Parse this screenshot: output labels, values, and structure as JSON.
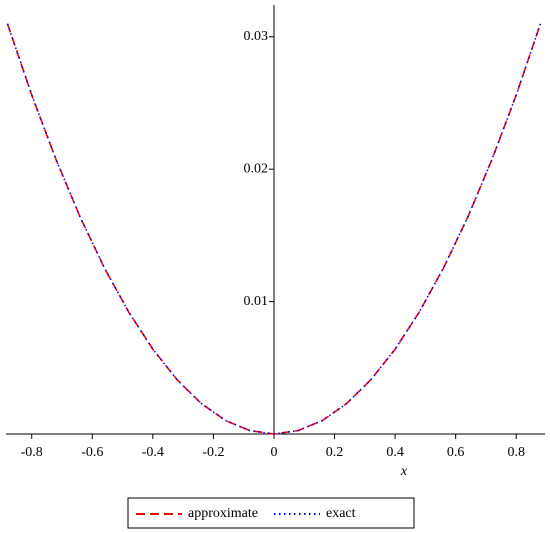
{
  "chart_data": {
    "type": "line",
    "x_label": "x",
    "x": [
      -0.88,
      -0.8,
      -0.72,
      -0.64,
      -0.56,
      -0.48,
      -0.4,
      -0.32,
      -0.24,
      -0.16,
      -0.08,
      0,
      0.08,
      0.16,
      0.24,
      0.32,
      0.4,
      0.48,
      0.56,
      0.64,
      0.72,
      0.8,
      0.88
    ],
    "series": [
      {
        "name": "approximate",
        "color": "#ff0000",
        "dash": "dashed",
        "values": [
          0.03098,
          0.0256,
          0.02074,
          0.01638,
          0.01254,
          0.00922,
          0.0064,
          0.0041,
          0.0023,
          0.00102,
          0.00026,
          0,
          0.00026,
          0.00102,
          0.0023,
          0.0041,
          0.0064,
          0.00922,
          0.01254,
          0.01638,
          0.02074,
          0.0256,
          0.03098
        ]
      },
      {
        "name": "exact",
        "color": "#0000ff",
        "dash": "dotted",
        "values": [
          0.03098,
          0.0256,
          0.02074,
          0.01638,
          0.01254,
          0.00922,
          0.0064,
          0.0041,
          0.0023,
          0.00102,
          0.00026,
          0,
          0.00026,
          0.00102,
          0.0023,
          0.0041,
          0.0064,
          0.00922,
          0.01254,
          0.01638,
          0.02074,
          0.0256,
          0.03098
        ]
      }
    ],
    "xlim": [
      -0.885,
      0.895
    ],
    "ylim": [
      0,
      0.0324
    ],
    "xticks": [
      -0.8,
      -0.6,
      -0.4,
      -0.2,
      0,
      0.2,
      0.4,
      0.6,
      0.8
    ],
    "yticks": [
      0.01,
      0.02,
      0.03
    ],
    "legend": "bottom"
  }
}
